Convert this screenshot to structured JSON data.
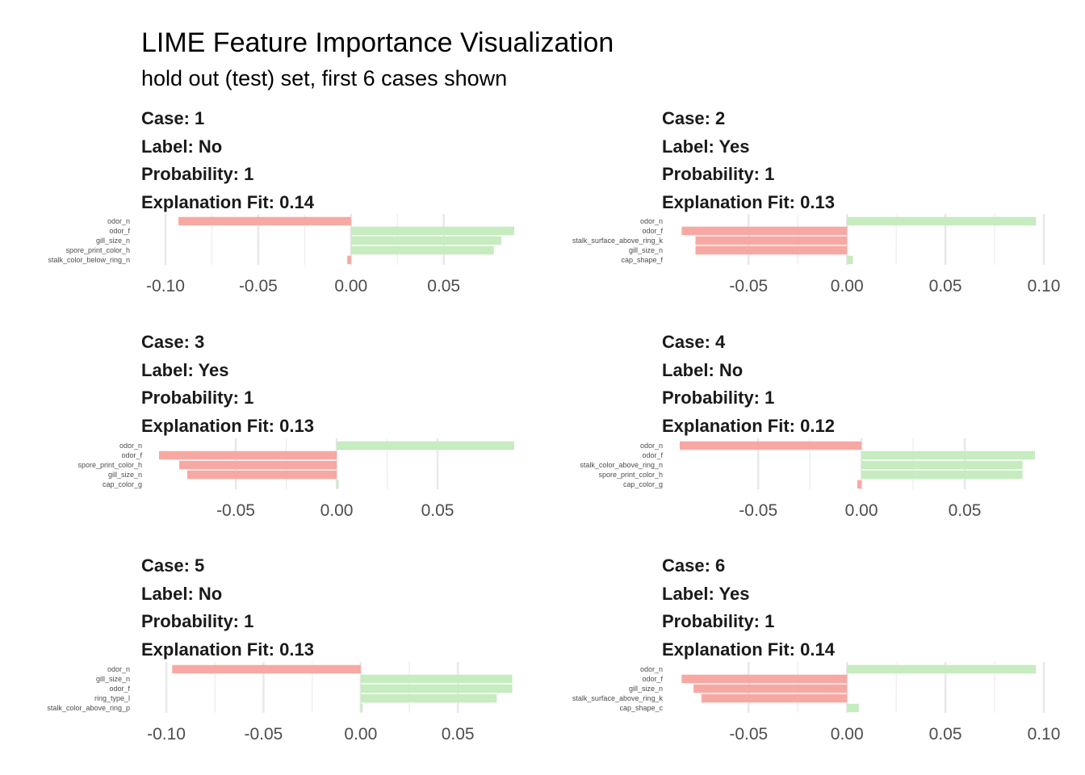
{
  "title": "LIME Feature Importance Visualization",
  "subtitle": "hold out (test) set, first 6 cases shown",
  "colors": {
    "supports": "#f7a8a2",
    "contradicts": "#c6ecbf",
    "grid": "#e8e8e8"
  },
  "chart_data": [
    {
      "type": "bar",
      "case_text": "Case: 1",
      "label_text": "Label: No",
      "prob_text": "Probability: 1",
      "fit_text": "Explanation Fit: 0.14",
      "categories": [
        "odor_n",
        "odor_f",
        "gill_size_n",
        "spore_print_color_h",
        "stalk_color_below_ring_n"
      ],
      "values": [
        -0.093,
        0.088,
        0.081,
        0.077,
        -0.002
      ],
      "xlim": [
        -0.11,
        0.088
      ],
      "ticks": [
        -0.1,
        -0.05,
        0.0,
        0.05
      ],
      "tick_labels": [
        "-0.10",
        "-0.05",
        "0.00",
        "0.05"
      ]
    },
    {
      "type": "bar",
      "case_text": "Case: 2",
      "label_text": "Label: Yes",
      "prob_text": "Probability: 1",
      "fit_text": "Explanation Fit: 0.13",
      "categories": [
        "odor_n",
        "odor_f",
        "stalk_surface_above_ring_k",
        "gill_size_n",
        "cap_shape_f"
      ],
      "values": [
        0.096,
        -0.084,
        -0.077,
        -0.077,
        0.003
      ],
      "xlim": [
        -0.085,
        0.1
      ],
      "ticks": [
        -0.05,
        0.0,
        0.05,
        0.1
      ],
      "tick_labels": [
        "-0.05",
        "0.00",
        "0.05",
        "0.10"
      ]
    },
    {
      "type": "bar",
      "case_text": "Case: 3",
      "label_text": "Label: Yes",
      "prob_text": "Probability: 1",
      "fit_text": "Explanation Fit: 0.13",
      "categories": [
        "odor_n",
        "odor_f",
        "spore_print_color_h",
        "gill_size_n",
        "cap_color_g"
      ],
      "values": [
        0.088,
        -0.088,
        -0.078,
        -0.074,
        0.001
      ],
      "xlim": [
        -0.088,
        0.088
      ],
      "ticks": [
        -0.05,
        0.0,
        0.05
      ],
      "tick_labels": [
        "-0.05",
        "0.00",
        "0.05"
      ]
    },
    {
      "type": "bar",
      "case_text": "Case: 4",
      "label_text": "Label: No",
      "prob_text": "Probability: 1",
      "fit_text": "Explanation Fit: 0.12",
      "categories": [
        "odor_n",
        "odor_f",
        "stalk_color_above_ring_n",
        "spore_print_color_h",
        "cap_color_g"
      ],
      "values": [
        -0.088,
        0.084,
        0.078,
        0.078,
        -0.002
      ],
      "xlim": [
        -0.088,
        0.084
      ],
      "ticks": [
        -0.05,
        0.0,
        0.05
      ],
      "tick_labels": [
        "-0.05",
        "0.00",
        "0.05"
      ]
    },
    {
      "type": "bar",
      "case_text": "Case: 5",
      "label_text": "Label: No",
      "prob_text": "Probability: 1",
      "fit_text": "Explanation Fit: 0.13",
      "categories": [
        "odor_n",
        "gill_size_n",
        "odor_f",
        "ring_type_l",
        "stalk_color_above_ring_p"
      ],
      "values": [
        -0.097,
        0.078,
        0.078,
        0.07,
        0.001
      ],
      "xlim": [
        -0.11,
        0.079
      ],
      "ticks": [
        -0.1,
        -0.05,
        0.0,
        0.05
      ],
      "tick_labels": [
        "-0.10",
        "-0.05",
        "0.00",
        "0.05"
      ]
    },
    {
      "type": "bar",
      "case_text": "Case: 6",
      "label_text": "Label: Yes",
      "prob_text": "Probability: 1",
      "fit_text": "Explanation Fit: 0.14",
      "categories": [
        "odor_n",
        "odor_f",
        "gill_size_n",
        "stalk_surface_above_ring_k",
        "cap_shape_c"
      ],
      "values": [
        0.096,
        -0.084,
        -0.078,
        -0.074,
        0.006
      ],
      "xlim": [
        -0.085,
        0.1
      ],
      "ticks": [
        -0.05,
        0.0,
        0.05,
        0.1
      ],
      "tick_labels": [
        "-0.05",
        "0.00",
        "0.05",
        "0.10"
      ]
    }
  ]
}
